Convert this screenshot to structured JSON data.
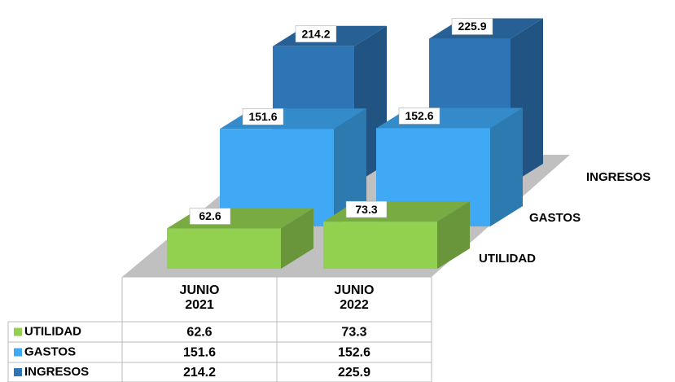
{
  "chart_data": {
    "type": "bar3d",
    "categories": [
      "JUNIO\n2021",
      "JUNIO\n2022"
    ],
    "series": [
      {
        "name": "UTILIDAD",
        "color": "#92d050",
        "values": [
          62.6,
          73.3
        ]
      },
      {
        "name": "GASTOS",
        "color": "#3fa9f5",
        "values": [
          151.6,
          152.6
        ]
      },
      {
        "name": "INGRESOS",
        "color": "#2e75b6",
        "values": [
          214.2,
          225.9
        ]
      }
    ],
    "data_table": true
  }
}
